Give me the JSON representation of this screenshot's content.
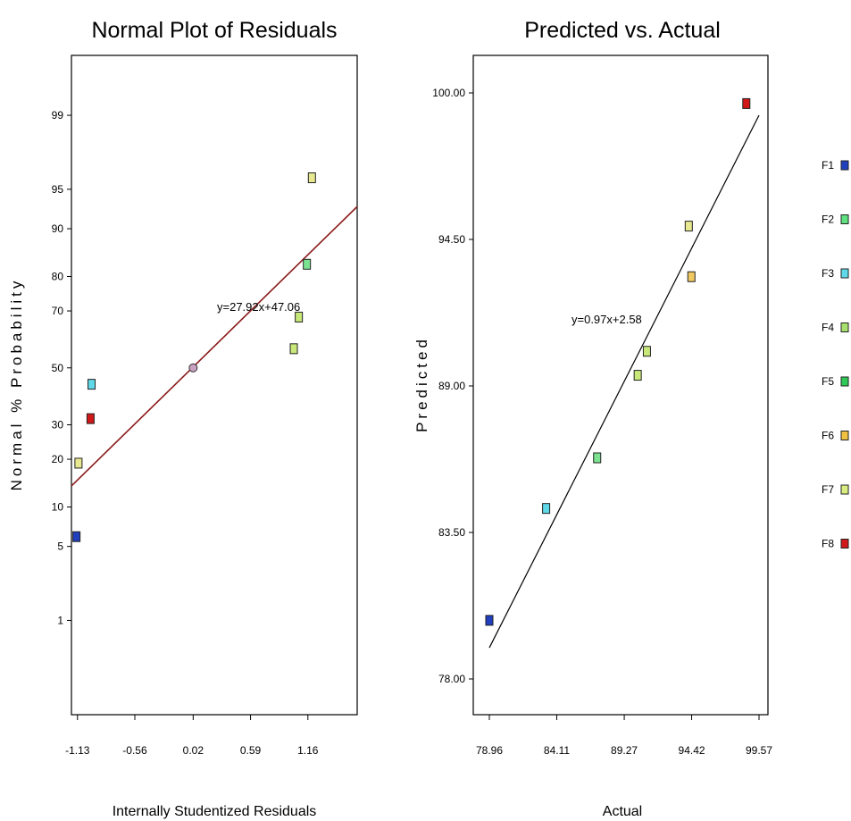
{
  "chart_data": [
    {
      "type": "scatter",
      "title": "Normal Plot of Residuals",
      "xlabel": "Internally Studentized Residuals",
      "ylabel": "Normal % Probability",
      "x_ticks": [
        "-1.13",
        "-0.56",
        "0.02",
        "0.59",
        "1.16"
      ],
      "y_ticks": [
        "1",
        "5",
        "10",
        "20",
        "30",
        "50",
        "70",
        "80",
        "90",
        "95",
        "99"
      ],
      "xlim": [
        -1.19,
        1.65
      ],
      "y_scale": "normal-probability",
      "grid": false,
      "equation": "y=27.92x+47.06",
      "line": {
        "slope": 27.92,
        "intercept": 47.06,
        "color": "#8b1a1a"
      },
      "points": [
        {
          "label": "F1",
          "x": -1.14,
          "y": 6,
          "color": "#1f3fbf"
        },
        {
          "label": "F7",
          "x": -1.12,
          "y": 19,
          "color": "#e8e890"
        },
        {
          "label": "F8",
          "x": -1.0,
          "y": 32,
          "color": "#d01818"
        },
        {
          "label": "F3",
          "x": -0.99,
          "y": 44,
          "color": "#5fd8e8"
        },
        {
          "label": "",
          "x": 0.02,
          "y": 50,
          "color": "#c8a0c0"
        },
        {
          "label": "F4",
          "x": 1.02,
          "y": 57,
          "color": "#c8e87a"
        },
        {
          "label": "F4",
          "x": 1.07,
          "y": 68,
          "color": "#c8e87a"
        },
        {
          "label": "F5",
          "x": 1.15,
          "y": 83,
          "color": "#7be38f"
        },
        {
          "label": "F7",
          "x": 1.2,
          "y": 96,
          "color": "#e8e890"
        }
      ]
    },
    {
      "type": "scatter",
      "title": "Predicted vs. Actual",
      "xlabel": "Actual",
      "ylabel": "Predicted",
      "x_ticks": [
        "78.96",
        "84.11",
        "89.27",
        "94.42",
        "99.57"
      ],
      "y_ticks": [
        "78.00",
        "83.50",
        "89.00",
        "94.50",
        "100.00"
      ],
      "xlim": [
        78.96,
        99.57
      ],
      "ylim": [
        78.0,
        100.0
      ],
      "grid": false,
      "equation": "y=0.97x+2.58",
      "line": {
        "slope": 0.97,
        "intercept": 2.58,
        "color": "#000000"
      },
      "points": [
        {
          "label": "F1",
          "x": 78.96,
          "y": 80.2,
          "color": "#1f3fbf"
        },
        {
          "label": "F3",
          "x": 83.3,
          "y": 84.4,
          "color": "#5fd8e8"
        },
        {
          "label": "F2",
          "x": 87.2,
          "y": 86.3,
          "color": "#7be38f"
        },
        {
          "label": "F4",
          "x": 90.3,
          "y": 89.4,
          "color": "#c8e87a"
        },
        {
          "label": "F4",
          "x": 91.0,
          "y": 90.3,
          "color": "#c8e87a"
        },
        {
          "label": "F7",
          "x": 94.2,
          "y": 95.0,
          "color": "#e8e890"
        },
        {
          "label": "F6",
          "x": 94.4,
          "y": 93.1,
          "color": "#f0c860"
        },
        {
          "label": "F8",
          "x": 98.6,
          "y": 99.6,
          "color": "#d01818"
        }
      ]
    }
  ],
  "legend": {
    "items": [
      {
        "label": "F1",
        "color": "#1f3fbf"
      },
      {
        "label": "F2",
        "color": "#5fe07f"
      },
      {
        "label": "F3",
        "color": "#5fd8e8"
      },
      {
        "label": "F4",
        "color": "#a8e070"
      },
      {
        "label": "F5",
        "color": "#30c858"
      },
      {
        "label": "F6",
        "color": "#f0c040"
      },
      {
        "label": "F7",
        "color": "#d8ec80"
      },
      {
        "label": "F8",
        "color": "#d01818"
      }
    ]
  }
}
